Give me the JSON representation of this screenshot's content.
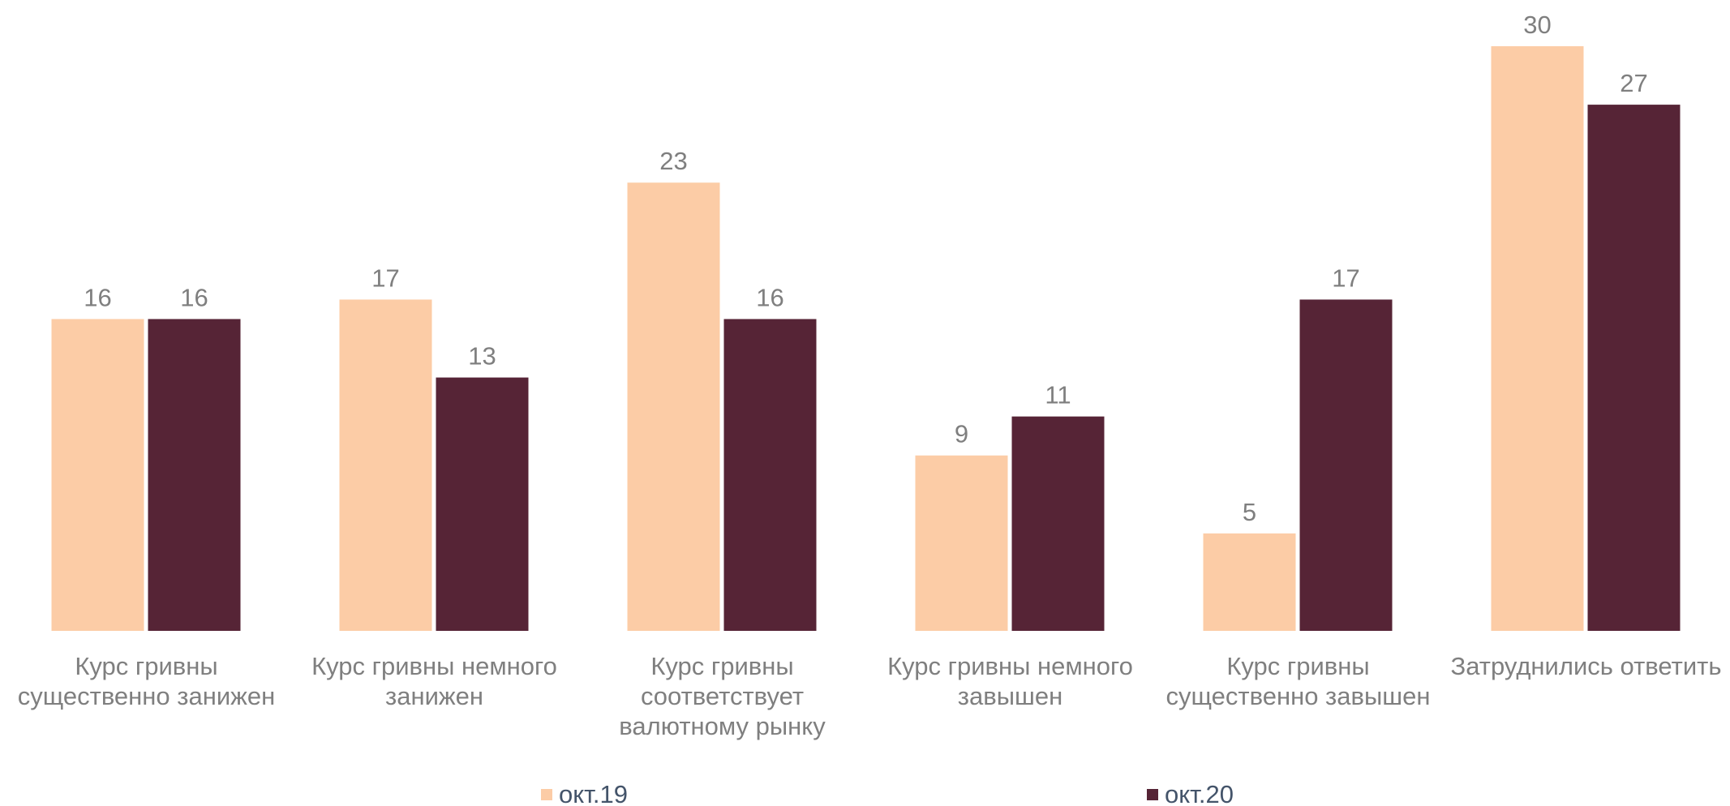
{
  "chart_data": {
    "type": "bar",
    "categories": [
      "Курс гривны существенно занижен",
      "Курс гривны немного занижен",
      "Курс гривны соответствует валютному рынку",
      "Курс гривны немного завышен",
      "Курс гривны существенно завышен",
      "Затруднились ответить"
    ],
    "series": [
      {
        "name": "окт.19",
        "color": "#fccca6",
        "values": [
          16,
          17,
          23,
          9,
          5,
          30
        ]
      },
      {
        "name": "окт.20",
        "color": "#562436",
        "values": [
          16,
          13,
          16,
          11,
          17,
          27
        ]
      }
    ],
    "legend": "bottom"
  }
}
